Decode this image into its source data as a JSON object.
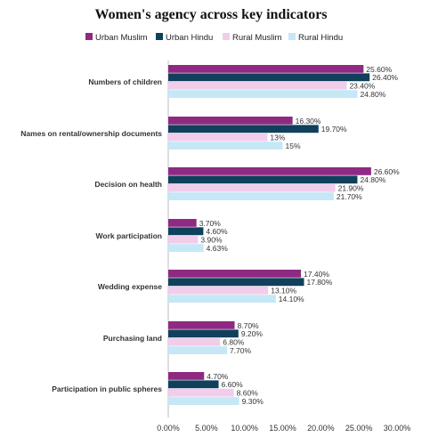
{
  "chart_data": {
    "type": "bar",
    "orientation": "horizontal",
    "title": "Women's agency across key indicators",
    "categories": [
      "Numbers of children",
      "Names on rental/ownership documents",
      "Decision on health",
      "Work participation",
      "Wedding expense",
      "Purchasing land",
      "Participation in public spheres"
    ],
    "series": [
      {
        "name": "Urban Muslim",
        "color": "#8E2A82",
        "values": [
          25.6,
          16.3,
          26.6,
          3.7,
          17.4,
          8.7,
          4.7
        ],
        "labels": [
          "25.60%",
          "16.30%",
          "26.60%",
          "3.70%",
          "17.40%",
          "8.70%",
          "4.70%"
        ]
      },
      {
        "name": "Urban Hindu",
        "color": "#10405B",
        "values": [
          26.4,
          19.7,
          24.8,
          4.6,
          17.8,
          9.2,
          6.6
        ],
        "labels": [
          "26.40%",
          "19.70%",
          "24.80%",
          "4.60%",
          "17.80%",
          "9.20%",
          "6.60%"
        ]
      },
      {
        "name": "Rural Muslim",
        "color": "#F1CDEB",
        "values": [
          23.4,
          13.0,
          21.9,
          3.9,
          13.1,
          6.8,
          8.6
        ],
        "labels": [
          "23.40%",
          "13%",
          "21.90%",
          "3.90%",
          "13.10%",
          "6.80%",
          "8.60%"
        ]
      },
      {
        "name": "Rural Hindu",
        "color": "#C6E7F6",
        "values": [
          24.8,
          15.0,
          21.7,
          4.63,
          14.1,
          7.7,
          9.3
        ],
        "labels": [
          "24.80%",
          "15%",
          "21.70%",
          "4.63%",
          "14.10%",
          "7.70%",
          "9.30%"
        ]
      }
    ],
    "xlim": [
      0,
      30
    ],
    "xticks": [
      "0.00%",
      "5.00%",
      "10.00%",
      "15.00%",
      "20.00%",
      "25.00%",
      "30.00%"
    ],
    "legend_position": "top",
    "grid": false
  }
}
